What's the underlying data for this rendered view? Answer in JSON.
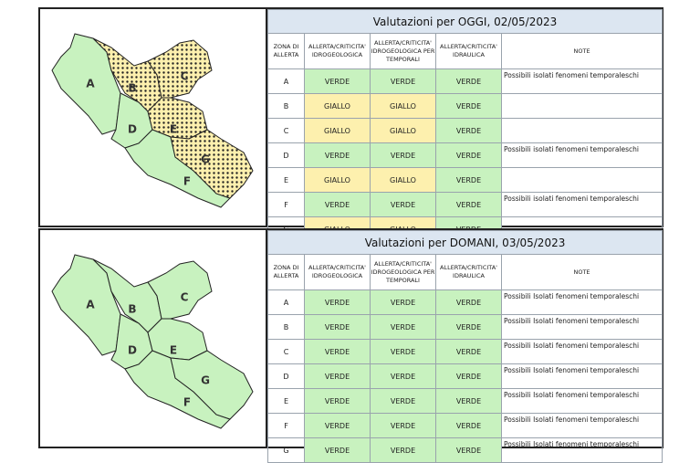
{
  "colors": {
    "VERDE": "#c8f2bf",
    "GIALLO": "#fdf0ae"
  },
  "panels": [
    {
      "title": "Valutazioni per OGGI, 02/05/2023",
      "headers": [
        "ZONA DI ALLERTA",
        "ALLERTA/CRITICITA' IDROGEOLOGICA",
        "ALLERTA/CRITICITA' IDROGEOLOGICA PER TEMPORALI",
        "ALLERTA/CRITICITA' IDRAULICA",
        "NOTE"
      ],
      "rows": [
        [
          "A",
          "VERDE",
          "VERDE",
          "VERDE",
          "Possibili isolati fenomeni temporaleschi"
        ],
        [
          "B",
          "GIALLO",
          "GIALLO",
          "VERDE",
          null
        ],
        [
          "C",
          "GIALLO",
          "GIALLO",
          "VERDE",
          null
        ],
        [
          "D",
          "VERDE",
          "VERDE",
          "VERDE",
          "Possibili isolati fenomeni temporaleschi"
        ],
        [
          "E",
          "GIALLO",
          "GIALLO",
          "VERDE",
          null
        ],
        [
          "F",
          "VERDE",
          "VERDE",
          "VERDE",
          "Possibili isolati fenomeni temporaleschi"
        ],
        [
          "G",
          "GIALLO",
          "GIALLO",
          "VERDE",
          null
        ]
      ]
    },
    {
      "title": "Valutazioni per DOMANI, 03/05/2023",
      "headers": [
        "ZONA DI ALLERTA",
        "ALLERTA/CRITICITA' IDROGEOLOGICA",
        "ALLERTA/CRITICITA' IDROGEOLOGICA PER TEMPORALI",
        "ALLERTA/CRITICITA' IDRAULICA",
        "NOTE"
      ],
      "rows": [
        [
          "A",
          "VERDE",
          "VERDE",
          "VERDE",
          "Possibili Isolati fenomeni temporaleschi"
        ],
        [
          "B",
          "VERDE",
          "VERDE",
          "VERDE",
          "Possibili Isolati fenomeni temporaleschi"
        ],
        [
          "C",
          "VERDE",
          "VERDE",
          "VERDE",
          "Possibili Isolati fenomeni temporaleschi"
        ],
        [
          "D",
          "VERDE",
          "VERDE",
          "VERDE",
          "Possibili Isolati fenomeni temporaleschi"
        ],
        [
          "E",
          "VERDE",
          "VERDE",
          "VERDE",
          "Possibili Isolati fenomeni temporaleschi"
        ],
        [
          "F",
          "VERDE",
          "VERDE",
          "VERDE",
          "Possibili Isolati fenomeni temporaleschi"
        ],
        [
          "G",
          "VERDE",
          "VERDE",
          "VERDE",
          "Possibili Isolati fenomeni temporaleschi"
        ]
      ]
    }
  ]
}
